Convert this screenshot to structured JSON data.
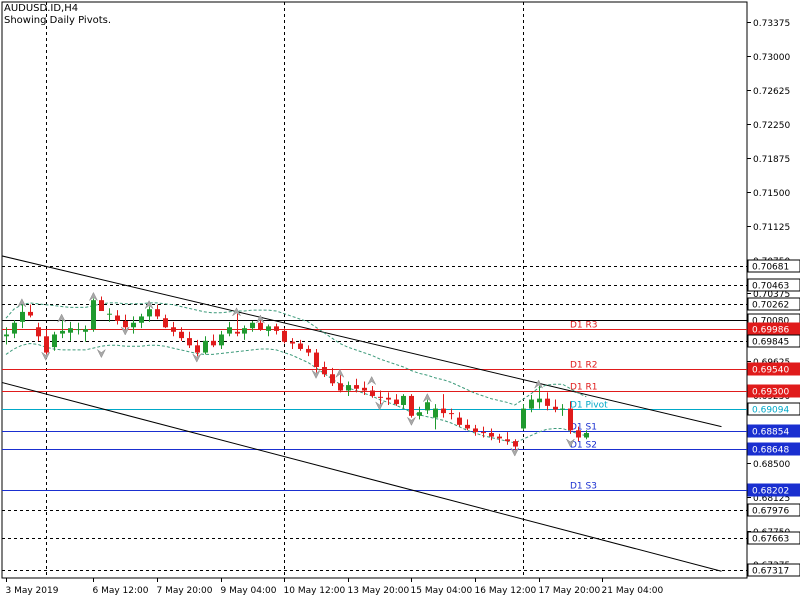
{
  "header": {
    "symbol": "AUDUSD.ID,H4",
    "subtitle": "Showing Daily Pivots."
  },
  "colors": {
    "background": "#ffffff",
    "bull": "#1f9a2e",
    "bear": "#e01b1b",
    "resistance": "#e01b1b",
    "pivot": "#00a8c8",
    "support": "#1a2fd0",
    "channel": "#000000",
    "envelope": "#3c9a7a",
    "fractal": "#a8a8a8",
    "grid": "#000000"
  },
  "chart_data": {
    "type": "candlestick",
    "ylim": [
      0.67225,
      0.736
    ],
    "y_ticks": [
      0.73375,
      0.73,
      0.72625,
      0.7225,
      0.71875,
      0.715,
      0.71125,
      0.7075,
      0.70375,
      0.7,
      0.69625,
      0.6925,
      0.68875,
      0.685,
      0.68125,
      0.6775,
      0.67375
    ],
    "x_ticks": [
      {
        "label": "3 May 2019",
        "bar": 0
      },
      {
        "label": "6 May 12:00",
        "bar": 11
      },
      {
        "label": "7 May 20:00",
        "bar": 19
      },
      {
        "label": "9 May 04:00",
        "bar": 27
      },
      {
        "label": "10 May 12:00",
        "bar": 35
      },
      {
        "label": "13 May 20:00",
        "bar": 43
      },
      {
        "label": "15 May 04:00",
        "bar": 51
      },
      {
        "label": "16 May 12:00",
        "bar": 59
      },
      {
        "label": "17 May 20:00",
        "bar": 67
      },
      {
        "label": "21 May 04:00",
        "bar": 75
      }
    ],
    "vertical_separators": [
      5,
      35,
      65
    ],
    "candles": [
      [
        0.699,
        0.7,
        0.6981,
        0.6992
      ],
      [
        0.6993,
        0.7008,
        0.6988,
        0.7005
      ],
      [
        0.7006,
        0.7025,
        0.6999,
        0.7017
      ],
      [
        0.7017,
        0.7025,
        0.7011,
        0.7013
      ],
      [
        0.7,
        0.7005,
        0.6985,
        0.699
      ],
      [
        0.699,
        0.6998,
        0.697,
        0.6972
      ],
      [
        0.6978,
        0.6995,
        0.6974,
        0.6992
      ],
      [
        0.6993,
        0.7008,
        0.6988,
        0.6996
      ],
      [
        0.6994,
        0.7006,
        0.6985,
        0.6999
      ],
      [
        0.6998,
        0.7005,
        0.6992,
        0.6998
      ],
      [
        0.6995,
        0.7002,
        0.6984,
        0.6998
      ],
      [
        0.6998,
        0.7032,
        0.6995,
        0.703
      ],
      [
        0.703,
        0.7034,
        0.7018,
        0.7018
      ],
      [
        0.7015,
        0.7021,
        0.7006,
        0.7015
      ],
      [
        0.7013,
        0.7019,
        0.7003,
        0.7007
      ],
      [
        0.7007,
        0.7014,
        0.6998,
        0.7
      ],
      [
        0.7,
        0.7012,
        0.6993,
        0.7005
      ],
      [
        0.7005,
        0.7015,
        0.6999,
        0.7012
      ],
      [
        0.7012,
        0.7023,
        0.7006,
        0.702
      ],
      [
        0.702,
        0.7025,
        0.7009,
        0.7012
      ],
      [
        0.701,
        0.7014,
        0.6999,
        0.7
      ],
      [
        0.7,
        0.7006,
        0.699,
        0.6995
      ],
      [
        0.6995,
        0.7,
        0.6985,
        0.6988
      ],
      [
        0.6988,
        0.6995,
        0.6977,
        0.698
      ],
      [
        0.698,
        0.6986,
        0.6968,
        0.6972
      ],
      [
        0.6972,
        0.699,
        0.697,
        0.6985
      ],
      [
        0.6985,
        0.6992,
        0.6978,
        0.698
      ],
      [
        0.698,
        0.6996,
        0.6976,
        0.6992
      ],
      [
        0.6993,
        0.7006,
        0.699,
        0.7
      ],
      [
        0.6995,
        0.7015,
        0.699,
        0.6993
      ],
      [
        0.6993,
        0.7002,
        0.6986,
        0.6999
      ],
      [
        0.6999,
        0.7007,
        0.6995,
        0.7005
      ],
      [
        0.7005,
        0.7009,
        0.6996,
        0.6998
      ],
      [
        0.6996,
        0.7003,
        0.699,
        0.7001
      ],
      [
        0.7001,
        0.7004,
        0.6992,
        0.6996
      ],
      [
        0.6996,
        0.6999,
        0.6982,
        0.6984
      ],
      [
        0.6984,
        0.6988,
        0.6976,
        0.6982
      ],
      [
        0.6982,
        0.6986,
        0.6974,
        0.6976
      ],
      [
        0.6976,
        0.698,
        0.6968,
        0.6972
      ],
      [
        0.6972,
        0.6976,
        0.695,
        0.6956
      ],
      [
        0.6956,
        0.6962,
        0.6945,
        0.6948
      ],
      [
        0.6948,
        0.6955,
        0.6935,
        0.6938
      ],
      [
        0.6938,
        0.6947,
        0.6928,
        0.693
      ],
      [
        0.693,
        0.694,
        0.6924,
        0.6936
      ],
      [
        0.6936,
        0.6943,
        0.6928,
        0.6932
      ],
      [
        0.6933,
        0.694,
        0.6925,
        0.693
      ],
      [
        0.693,
        0.6935,
        0.6922,
        0.6924
      ],
      [
        0.6923,
        0.693,
        0.6915,
        0.6922
      ],
      [
        0.6922,
        0.6928,
        0.6914,
        0.692
      ],
      [
        0.692,
        0.6926,
        0.6913,
        0.6915
      ],
      [
        0.6914,
        0.6926,
        0.691,
        0.6924
      ],
      [
        0.6924,
        0.6926,
        0.69,
        0.6902
      ],
      [
        0.6902,
        0.6912,
        0.6898,
        0.6906
      ],
      [
        0.6908,
        0.692,
        0.6904,
        0.6917
      ],
      [
        0.69,
        0.6915,
        0.6887,
        0.691
      ],
      [
        0.691,
        0.6926,
        0.69,
        0.6905
      ],
      [
        0.6905,
        0.691,
        0.6898,
        0.6904
      ],
      [
        0.69,
        0.6906,
        0.689,
        0.6892
      ],
      [
        0.6892,
        0.6898,
        0.6886,
        0.6888
      ],
      [
        0.6888,
        0.6892,
        0.688,
        0.6884
      ],
      [
        0.6884,
        0.689,
        0.6878,
        0.6883
      ],
      [
        0.6883,
        0.6888,
        0.6875,
        0.6879
      ],
      [
        0.6879,
        0.6882,
        0.6872,
        0.6877
      ],
      [
        0.6876,
        0.6884,
        0.687,
        0.6874
      ],
      [
        0.6874,
        0.6876,
        0.6864,
        0.6868
      ],
      [
        0.6888,
        0.6915,
        0.6886,
        0.691
      ],
      [
        0.691,
        0.6925,
        0.6906,
        0.692
      ],
      [
        0.6917,
        0.6935,
        0.691,
        0.6921
      ],
      [
        0.6921,
        0.6928,
        0.6908,
        0.6913
      ],
      [
        0.6912,
        0.692,
        0.6906,
        0.6909
      ],
      [
        0.6909,
        0.6915,
        0.6902,
        0.691
      ],
      [
        0.691,
        0.6918,
        0.6882,
        0.6886
      ],
      [
        0.6886,
        0.689,
        0.6874,
        0.6878
      ],
      [
        0.6878,
        0.6886,
        0.6876,
        0.6883
      ]
    ],
    "h_lines": [
      {
        "value": 0.70681,
        "label": "0.70681",
        "style": "dash",
        "color": "#000000",
        "fill": "#ffffff",
        "text": "#000000",
        "tick_text": "0.70750"
      },
      {
        "value": 0.70463,
        "label": "0.70463",
        "style": "dash",
        "color": "#000000",
        "fill": "#ffffff",
        "text": "#000000",
        "tick_text": "0.70375"
      },
      {
        "value": 0.70262,
        "label": "0.70262",
        "style": "dash",
        "color": "#000000",
        "fill": "#ffffff",
        "text": "#000000"
      },
      {
        "value": 0.7008,
        "label": "0.70080",
        "style": "solid",
        "color": "#000000",
        "fill": "#ffffff",
        "text": "#000000"
      },
      {
        "value": 0.69986,
        "label": "0.69986",
        "style": "solid",
        "color": "#e01b1b",
        "fill": "#e01b1b",
        "text": "#ffffff",
        "tag": "D1 R3"
      },
      {
        "value": 0.69845,
        "label": "0.69845",
        "style": "dash",
        "color": "#000000",
        "fill": "#ffffff",
        "text": "#000000"
      },
      {
        "value": 0.6954,
        "label": "0.69540",
        "style": "solid",
        "color": "#e01b1b",
        "fill": "#e01b1b",
        "text": "#ffffff",
        "tag": "D1 R2",
        "tick_text": "0.69625"
      },
      {
        "value": 0.693,
        "label": "0.69300",
        "style": "solid",
        "color": "#e01b1b",
        "fill": "#e01b1b",
        "text": "#ffffff",
        "tag": "D1 R1",
        "tick_text": "0.69250"
      },
      {
        "value": 0.69094,
        "label": "0.69094",
        "style": "solid",
        "color": "#00a8c8",
        "fill": "#ffffff",
        "text": "#00a8c8",
        "tag": "D1 Pivot"
      },
      {
        "value": 0.68854,
        "label": "0.68854",
        "style": "solid",
        "color": "#1a2fd0",
        "fill": "#1a2fd0",
        "text": "#ffffff",
        "tag": "D1 S1",
        "tick_text": "0.68875"
      },
      {
        "value": 0.68648,
        "label": "0.68648",
        "style": "solid",
        "color": "#1a2fd0",
        "fill": "#1a2fd0",
        "text": "#ffffff",
        "tag": "D1 S2"
      },
      {
        "value": 0.68202,
        "label": "0.68202",
        "style": "solid",
        "color": "#1a2fd0",
        "fill": "#1a2fd0",
        "text": "#ffffff",
        "tag": "D1 S3",
        "tick_text": "0.68125"
      },
      {
        "value": 0.67976,
        "label": "0.67976",
        "style": "dash",
        "color": "#000000",
        "fill": "#ffffff",
        "text": "#000000"
      },
      {
        "value": 0.67663,
        "label": "0.67663",
        "style": "dash",
        "color": "#000000",
        "fill": "#ffffff",
        "text": "#000000",
        "tick_text": "0.67750"
      },
      {
        "value": 0.67317,
        "label": "0.67317",
        "style": "dash",
        "color": "#000000",
        "fill": "#ffffff",
        "text": "#000000",
        "tick_text": "0.67375"
      }
    ],
    "trendlines": [
      {
        "name": "channel-upper",
        "x1": -1,
        "y1": 0.708,
        "x2": 90,
        "y2": 0.689
      },
      {
        "name": "channel-lower",
        "x1": -1,
        "y1": 0.694,
        "x2": 90,
        "y2": 0.673
      }
    ],
    "envelope": {
      "upper": [
        0.701,
        0.702,
        0.7025,
        0.7027,
        0.7026,
        0.7025,
        0.7024,
        0.7023,
        0.7022,
        0.7022,
        0.7022,
        0.7024,
        0.7026,
        0.7027,
        0.7027,
        0.7026,
        0.7026,
        0.7026,
        0.7027,
        0.7027,
        0.7026,
        0.7025,
        0.7023,
        0.7021,
        0.7019,
        0.7017,
        0.7016,
        0.7016,
        0.7017,
        0.7018,
        0.7018,
        0.7019,
        0.7019,
        0.7019,
        0.7018,
        0.7015,
        0.7012,
        0.7009,
        0.7006,
        0.7,
        0.6994,
        0.6988,
        0.6982,
        0.6978,
        0.6975,
        0.6972,
        0.6969,
        0.6965,
        0.6962,
        0.6959,
        0.6956,
        0.6952,
        0.6949,
        0.6947,
        0.6944,
        0.6942,
        0.6939,
        0.6935,
        0.6931,
        0.6927,
        0.6924,
        0.6921,
        0.6919,
        0.6917,
        0.6914,
        0.692,
        0.6926,
        0.6933,
        0.6936,
        0.6937,
        0.6937,
        0.6932,
        0.6927,
        0.6923
      ],
      "lower": [
        0.697,
        0.6976,
        0.698,
        0.6982,
        0.6981,
        0.6978,
        0.6976,
        0.6975,
        0.6975,
        0.6975,
        0.6975,
        0.6977,
        0.6979,
        0.698,
        0.698,
        0.6979,
        0.6979,
        0.6979,
        0.698,
        0.698,
        0.6979,
        0.6977,
        0.6975,
        0.6973,
        0.6971,
        0.697,
        0.697,
        0.6971,
        0.6972,
        0.6973,
        0.6974,
        0.6975,
        0.6976,
        0.6976,
        0.6975,
        0.6972,
        0.6969,
        0.6965,
        0.6961,
        0.6955,
        0.6949,
        0.6943,
        0.6937,
        0.6933,
        0.693,
        0.6927,
        0.6924,
        0.692,
        0.6917,
        0.6914,
        0.691,
        0.6906,
        0.6903,
        0.6901,
        0.6899,
        0.6897,
        0.6894,
        0.689,
        0.6886,
        0.6883,
        0.688,
        0.6878,
        0.6876,
        0.6874,
        0.6872,
        0.6876,
        0.688,
        0.6884,
        0.6887,
        0.6888,
        0.6888,
        0.6885,
        0.6882,
        0.688
      ]
    },
    "fractals": [
      {
        "bar": 2,
        "dir": "up",
        "value": 0.7026
      },
      {
        "bar": 5,
        "dir": "down",
        "value": 0.6969
      },
      {
        "bar": 7,
        "dir": "up",
        "value": 0.7009
      },
      {
        "bar": 11,
        "dir": "up",
        "value": 0.7033
      },
      {
        "bar": 12,
        "dir": "down",
        "value": 0.6972
      },
      {
        "bar": 15,
        "dir": "down",
        "value": 0.6997
      },
      {
        "bar": 18,
        "dir": "up",
        "value": 0.7024
      },
      {
        "bar": 24,
        "dir": "down",
        "value": 0.6967
      },
      {
        "bar": 29,
        "dir": "up",
        "value": 0.7016
      },
      {
        "bar": 32,
        "dir": "up",
        "value": 0.7008
      },
      {
        "bar": 39,
        "dir": "down",
        "value": 0.6949
      },
      {
        "bar": 42,
        "dir": "up",
        "value": 0.6948
      },
      {
        "bar": 46,
        "dir": "up",
        "value": 0.694
      },
      {
        "bar": 47,
        "dir": "down",
        "value": 0.6914
      },
      {
        "bar": 51,
        "dir": "down",
        "value": 0.6897
      },
      {
        "bar": 53,
        "dir": "up",
        "value": 0.6921
      },
      {
        "bar": 64,
        "dir": "down",
        "value": 0.6863
      },
      {
        "bar": 67,
        "dir": "up",
        "value": 0.6936
      },
      {
        "bar": 71,
        "dir": "down",
        "value": 0.6873
      }
    ]
  }
}
